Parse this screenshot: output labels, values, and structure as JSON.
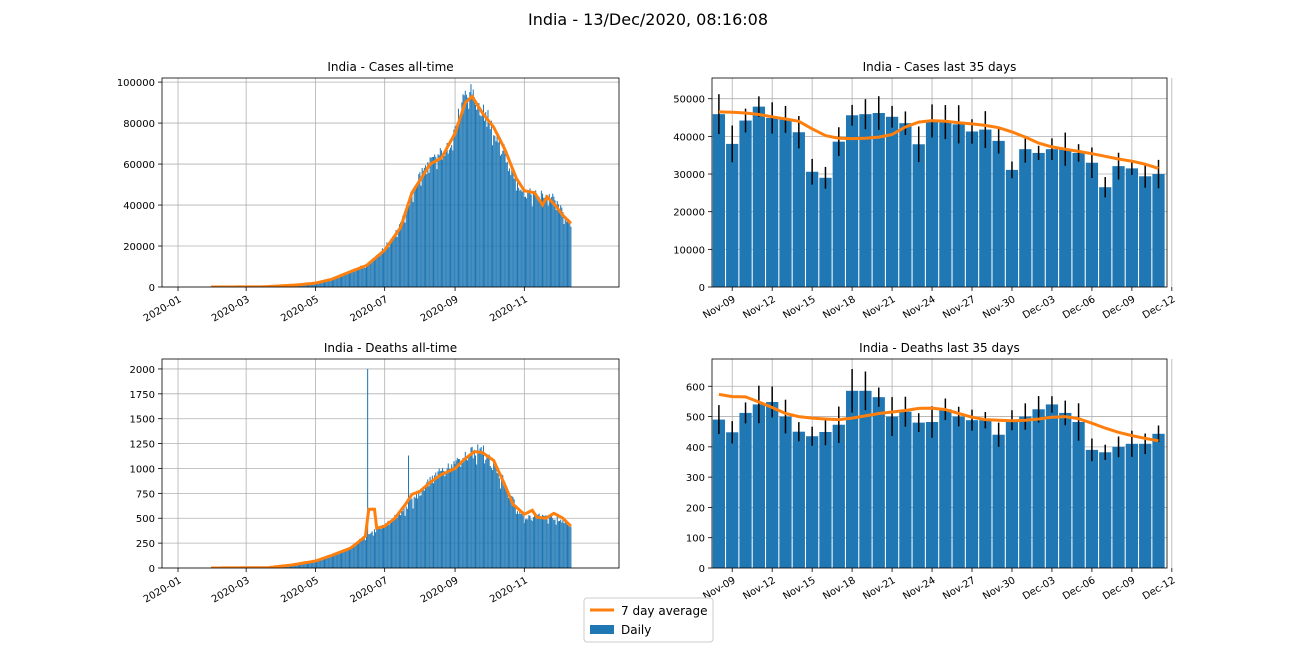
{
  "figure": {
    "suptitle": "India - 13/Dec/2020, 08:16:08",
    "legend": {
      "placement": "bottom-center",
      "entries": [
        {
          "label": "7 day average",
          "color": "#ff7f0e",
          "kind": "line"
        },
        {
          "label": "Daily",
          "color": "#1f77b4",
          "kind": "bar"
        }
      ]
    }
  },
  "chart_data": [
    {
      "type": "bar",
      "title": "India - Cases all-time",
      "xlabel": "",
      "ylabel": "",
      "x_ticks": [
        "2020-01",
        "2020-03",
        "2020-05",
        "2020-07",
        "2020-09",
        "2020-11"
      ],
      "ylim": [
        0,
        102000
      ],
      "y_ticks": [
        0,
        20000,
        40000,
        60000,
        80000,
        100000
      ],
      "grid": true,
      "series": [
        {
          "name": "Daily",
          "kind": "bar",
          "color": "#1f77b4",
          "interval": "daily",
          "start": "2020-01-30",
          "anchors": [
            [
              "2020-01-30",
              0
            ],
            [
              "2020-03-01",
              3
            ],
            [
              "2020-03-20",
              60
            ],
            [
              "2020-04-01",
              500
            ],
            [
              "2020-04-15",
              1000
            ],
            [
              "2020-05-01",
              1900
            ],
            [
              "2020-05-15",
              3800
            ],
            [
              "2020-06-01",
              8000
            ],
            [
              "2020-06-15",
              11000
            ],
            [
              "2020-07-01",
              19000
            ],
            [
              "2020-07-15",
              30000
            ],
            [
              "2020-08-01",
              55000
            ],
            [
              "2020-08-15",
              63000
            ],
            [
              "2020-08-25",
              67000
            ],
            [
              "2020-09-01",
              78000
            ],
            [
              "2020-09-10",
              92000
            ],
            [
              "2020-09-16",
              97000
            ],
            [
              "2020-09-22",
              87000
            ],
            [
              "2020-10-01",
              81000
            ],
            [
              "2020-10-10",
              72000
            ],
            [
              "2020-10-20",
              57000
            ],
            [
              "2020-11-01",
              46000
            ],
            [
              "2020-11-10",
              45000
            ],
            [
              "2020-11-20",
              45000
            ],
            [
              "2020-11-27",
              43000
            ],
            [
              "2020-12-05",
              36000
            ],
            [
              "2020-12-12",
              30000
            ]
          ]
        },
        {
          "name": "7 day average",
          "kind": "line",
          "color": "#ff7f0e",
          "anchors": [
            [
              "2020-01-30",
              0
            ],
            [
              "2020-03-15",
              50
            ],
            [
              "2020-04-15",
              1000
            ],
            [
              "2020-05-01",
              1900
            ],
            [
              "2020-05-15",
              3700
            ],
            [
              "2020-06-01",
              7500
            ],
            [
              "2020-06-15",
              10500
            ],
            [
              "2020-07-01",
              18000
            ],
            [
              "2020-07-15",
              29000
            ],
            [
              "2020-07-25",
              46000
            ],
            [
              "2020-08-01",
              52000
            ],
            [
              "2020-08-10",
              60000
            ],
            [
              "2020-08-20",
              63000
            ],
            [
              "2020-09-01",
              75000
            ],
            [
              "2020-09-10",
              90000
            ],
            [
              "2020-09-16",
              93000
            ],
            [
              "2020-09-25",
              85000
            ],
            [
              "2020-10-05",
              78000
            ],
            [
              "2020-10-15",
              67000
            ],
            [
              "2020-10-25",
              53000
            ],
            [
              "2020-11-01",
              47000
            ],
            [
              "2020-11-10",
              46000
            ],
            [
              "2020-11-17",
              40000
            ],
            [
              "2020-11-21",
              44000
            ],
            [
              "2020-11-28",
              40000
            ],
            [
              "2020-12-05",
              35000
            ],
            [
              "2020-12-12",
              31000
            ]
          ]
        }
      ]
    },
    {
      "type": "bar",
      "title": "India - Cases last 35 days",
      "xlabel": "",
      "ylabel": "",
      "x_ticks": [
        "Nov-09",
        "Nov-12",
        "Nov-15",
        "Nov-18",
        "Nov-21",
        "Nov-24",
        "Nov-27",
        "Nov-30",
        "Dec-03",
        "Dec-06",
        "Dec-09",
        "Dec-12"
      ],
      "start_date": "2020-11-08",
      "ylim": [
        0,
        55500
      ],
      "y_ticks": [
        0,
        10000,
        20000,
        30000,
        40000,
        50000
      ],
      "grid": true,
      "series": [
        {
          "name": "Daily",
          "kind": "bar",
          "color": "#1f77b4",
          "error_bars": true,
          "values": [
            45900,
            38000,
            44200,
            47900,
            44900,
            44500,
            41100,
            30600,
            29000,
            38600,
            45600,
            45900,
            46200,
            45200,
            43500,
            37900,
            44100,
            43800,
            43200,
            41300,
            41800,
            38800,
            31100,
            36600,
            35600,
            36600,
            36600,
            35600,
            33000,
            26500,
            32100,
            31500,
            29400,
            30000
          ]
        },
        {
          "name": "7 day average",
          "kind": "line",
          "color": "#ff7f0e",
          "values": [
            46500,
            46400,
            46200,
            45800,
            45200,
            44600,
            44000,
            42000,
            40200,
            39500,
            39400,
            39500,
            39800,
            40500,
            42500,
            43800,
            44200,
            44000,
            43600,
            43300,
            42900,
            42300,
            41200,
            39800,
            38200,
            37200,
            36600,
            36000,
            35400,
            34700,
            34000,
            33400,
            32600,
            31500
          ]
        }
      ]
    },
    {
      "type": "bar",
      "title": "India - Deaths all-time",
      "xlabel": "",
      "ylabel": "",
      "x_ticks": [
        "2020-01",
        "2020-03",
        "2020-05",
        "2020-07",
        "2020-09",
        "2020-11"
      ],
      "ylim": [
        0,
        2100
      ],
      "y_ticks": [
        0,
        250,
        500,
        750,
        1000,
        1250,
        1500,
        1750,
        2000
      ],
      "grid": true,
      "series": [
        {
          "name": "Daily",
          "kind": "bar",
          "color": "#1f77b4",
          "interval": "daily",
          "start": "2020-01-30",
          "spikes": [
            [
              "2020-06-16",
              2000
            ],
            [
              "2020-07-22",
              1130
            ]
          ],
          "anchors": [
            [
              "2020-01-30",
              0
            ],
            [
              "2020-03-10",
              1
            ],
            [
              "2020-03-25",
              5
            ],
            [
              "2020-04-01",
              25
            ],
            [
              "2020-04-15",
              40
            ],
            [
              "2020-05-01",
              80
            ],
            [
              "2020-05-15",
              115
            ],
            [
              "2020-06-01",
              210
            ],
            [
              "2020-06-15",
              330
            ],
            [
              "2020-07-01",
              420
            ],
            [
              "2020-07-15",
              560
            ],
            [
              "2020-08-01",
              760
            ],
            [
              "2020-08-15",
              930
            ],
            [
              "2020-09-01",
              1050
            ],
            [
              "2020-09-15",
              1170
            ],
            [
              "2020-09-25",
              1180
            ],
            [
              "2020-10-01",
              1100
            ],
            [
              "2020-10-15",
              850
            ],
            [
              "2020-10-25",
              600
            ],
            [
              "2020-11-01",
              500
            ],
            [
              "2020-11-15",
              520
            ],
            [
              "2020-12-01",
              490
            ],
            [
              "2020-12-12",
              440
            ]
          ]
        },
        {
          "name": "7 day average",
          "kind": "line",
          "color": "#ff7f0e",
          "anchors": [
            [
              "2020-01-30",
              0
            ],
            [
              "2020-03-20",
              3
            ],
            [
              "2020-04-10",
              30
            ],
            [
              "2020-05-01",
              70
            ],
            [
              "2020-05-15",
              125
            ],
            [
              "2020-06-01",
              200
            ],
            [
              "2020-06-10",
              280
            ],
            [
              "2020-06-14",
              320
            ],
            [
              "2020-06-17",
              590
            ],
            [
              "2020-06-22",
              590
            ],
            [
              "2020-06-24",
              400
            ],
            [
              "2020-07-01",
              420
            ],
            [
              "2020-07-10",
              500
            ],
            [
              "2020-07-20",
              650
            ],
            [
              "2020-07-25",
              740
            ],
            [
              "2020-08-01",
              770
            ],
            [
              "2020-08-10",
              860
            ],
            [
              "2020-08-20",
              940
            ],
            [
              "2020-09-01",
              1000
            ],
            [
              "2020-09-10",
              1100
            ],
            [
              "2020-09-18",
              1170
            ],
            [
              "2020-09-25",
              1160
            ],
            [
              "2020-10-05",
              1080
            ],
            [
              "2020-10-15",
              830
            ],
            [
              "2020-10-22",
              640
            ],
            [
              "2020-11-01",
              540
            ],
            [
              "2020-11-08",
              580
            ],
            [
              "2020-11-12",
              510
            ],
            [
              "2020-11-20",
              500
            ],
            [
              "2020-11-27",
              550
            ],
            [
              "2020-12-05",
              500
            ],
            [
              "2020-12-12",
              420
            ]
          ]
        }
      ]
    },
    {
      "type": "bar",
      "title": "India - Deaths last 35 days",
      "xlabel": "",
      "ylabel": "",
      "x_ticks": [
        "Nov-09",
        "Nov-12",
        "Nov-15",
        "Nov-18",
        "Nov-21",
        "Nov-24",
        "Nov-27",
        "Nov-30",
        "Dec-03",
        "Dec-06",
        "Dec-09",
        "Dec-12"
      ],
      "start_date": "2020-11-08",
      "ylim": [
        0,
        690
      ],
      "y_ticks": [
        0,
        100,
        200,
        300,
        400,
        500,
        600
      ],
      "grid": true,
      "series": [
        {
          "name": "Daily",
          "kind": "bar",
          "color": "#1f77b4",
          "error_bars": true,
          "values": [
            490,
            448,
            512,
            540,
            548,
            500,
            450,
            435,
            449,
            473,
            585,
            585,
            564,
            500,
            516,
            480,
            482,
            524,
            500,
            488,
            488,
            440,
            488,
            500,
            524,
            540,
            512,
            482,
            390,
            382,
            400,
            410,
            410,
            443
          ]
        },
        {
          "name": "7 day average",
          "kind": "line",
          "color": "#ff7f0e",
          "values": [
            573,
            566,
            565,
            548,
            530,
            510,
            500,
            495,
            492,
            490,
            495,
            502,
            510,
            515,
            520,
            527,
            528,
            523,
            510,
            498,
            490,
            488,
            486,
            488,
            492,
            498,
            500,
            493,
            478,
            462,
            448,
            437,
            428,
            420
          ]
        }
      ]
    }
  ]
}
